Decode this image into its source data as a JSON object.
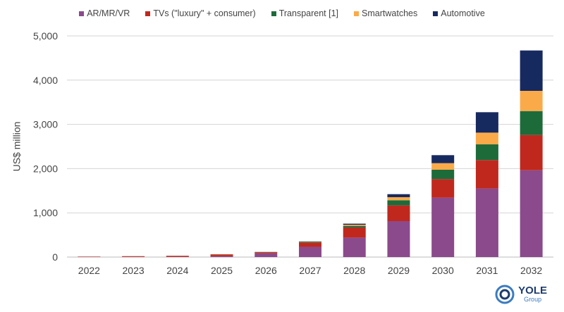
{
  "chart_data": {
    "type": "bar",
    "stacked": true,
    "title": "",
    "xlabel": "",
    "ylabel": "US$ million",
    "ylim": [
      0,
      5000
    ],
    "yticks": [
      0,
      1000,
      2000,
      3000,
      4000,
      5000
    ],
    "ytick_labels": [
      "0",
      "1,000",
      "2,000",
      "3,000",
      "4,000",
      "5,000"
    ],
    "grid": true,
    "legend_position": "top",
    "categories": [
      "2022",
      "2023",
      "2024",
      "2025",
      "2026",
      "2027",
      "2028",
      "2029",
      "2030",
      "2031",
      "2032"
    ],
    "series": [
      {
        "name": "AR/MR/VR",
        "color": "#8b4a8c",
        "values": [
          4,
          5,
          6,
          20,
          85,
          230,
          440,
          812,
          1343,
          1550,
          1963
        ]
      },
      {
        "name": "TVs (\"luxury\" + consumer)",
        "color": "#c0281e",
        "values": [
          8,
          15,
          22,
          40,
          25,
          100,
          230,
          356,
          419,
          643,
          797
        ]
      },
      {
        "name": "Transparent [1]",
        "color": "#1e6b3a",
        "values": [
          0,
          0,
          1,
          3,
          5,
          18,
          35,
          117,
          213,
          355,
          541
        ]
      },
      {
        "name": "Smartwatches",
        "color": "#fbaa4a",
        "values": [
          0,
          0,
          0,
          1,
          1,
          4,
          25,
          69,
          148,
          265,
          457
        ]
      },
      {
        "name": "Automotive",
        "color": "#172a60",
        "values": [
          0,
          0,
          0,
          0,
          1,
          3,
          25,
          68,
          181,
          462,
          913
        ]
      }
    ]
  },
  "logo": {
    "name": "YOLE",
    "sub": "Group"
  }
}
